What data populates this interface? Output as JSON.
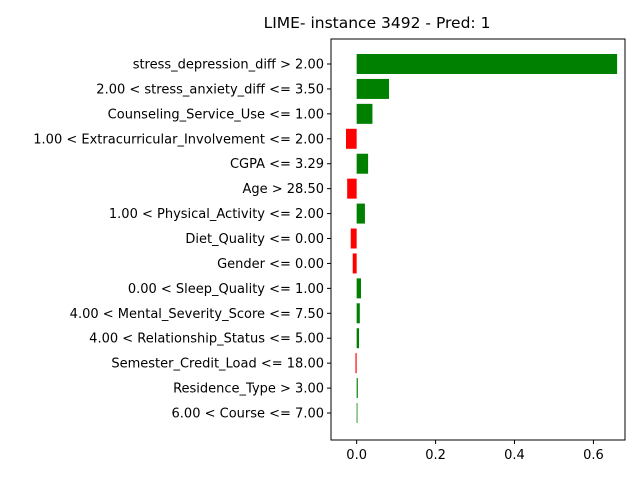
{
  "chart_data": {
    "type": "bar",
    "orientation": "horizontal",
    "title": "LIME- instance 3492 - Pred: 1",
    "xlabel": "",
    "ylabel": "",
    "xlim": [
      -0.065,
      0.68
    ],
    "xticks": [
      0.0,
      0.2,
      0.4,
      0.6
    ],
    "xtick_labels": [
      "0.0",
      "0.2",
      "0.4",
      "0.6"
    ],
    "positive_color": "#008000",
    "negative_color": "#ff0000",
    "categories": [
      "stress_depression_diff > 2.00",
      "2.00 < stress_anxiety_diff <= 3.50",
      "Counseling_Service_Use <= 1.00",
      "1.00 < Extracurricular_Involvement <= 2.00",
      "CGPA <= 3.29",
      "Age > 28.50",
      "1.00 < Physical_Activity <= 2.00",
      "Diet_Quality <= 0.00",
      "Gender <= 0.00",
      "0.00 < Sleep_Quality <= 1.00",
      "4.00 < Mental_Severity_Score <= 7.50",
      "4.00 < Relationship_Status <= 5.00",
      "Semester_Credit_Load <= 18.00",
      "Residence_Type > 3.00",
      "6.00 < Course <= 7.00"
    ],
    "values": [
      0.66,
      0.082,
      0.04,
      -0.027,
      0.029,
      -0.024,
      0.021,
      -0.015,
      -0.01,
      0.011,
      0.008,
      0.006,
      -0.003,
      0.003,
      0.002
    ]
  }
}
